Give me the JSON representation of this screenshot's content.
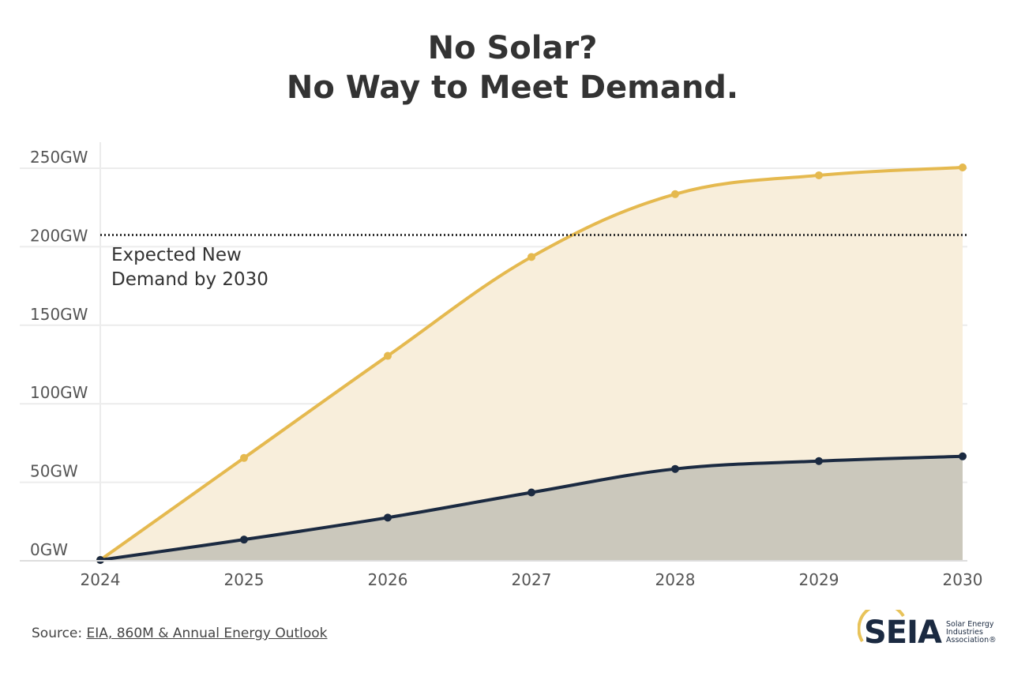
{
  "title_line1": "No Solar?",
  "title_line2": "No Way to Meet Demand.",
  "source_label": "Source: ",
  "source_link": "EIA, 860M & Annual Energy Outlook",
  "logo": {
    "name": "SEIA",
    "sub": "Solar Energy Industries Association®"
  },
  "chart_data": {
    "type": "area",
    "x": [
      "2024",
      "2025",
      "2026",
      "2027",
      "2028",
      "2029",
      "2030"
    ],
    "ylim": [
      0,
      250
    ],
    "yticks": [
      "0GW",
      "50GW",
      "100GW",
      "150GW",
      "200GW",
      "250GW"
    ],
    "ytick_values": [
      0,
      50,
      100,
      150,
      200,
      250
    ],
    "grid": true,
    "series": [
      {
        "values": [
          0,
          65,
          130,
          193,
          233,
          245,
          250
        ],
        "color": "#e5b94f",
        "fill": "#f8eedb"
      },
      {
        "values": [
          0,
          13,
          27,
          43,
          58,
          63,
          66
        ],
        "color": "#1b2a41",
        "fill": "#cbc8bc"
      }
    ],
    "reference_line": {
      "value": 207,
      "label_line1": "Expected New",
      "label_line2": "Demand by 2030",
      "style": "dotted"
    }
  }
}
